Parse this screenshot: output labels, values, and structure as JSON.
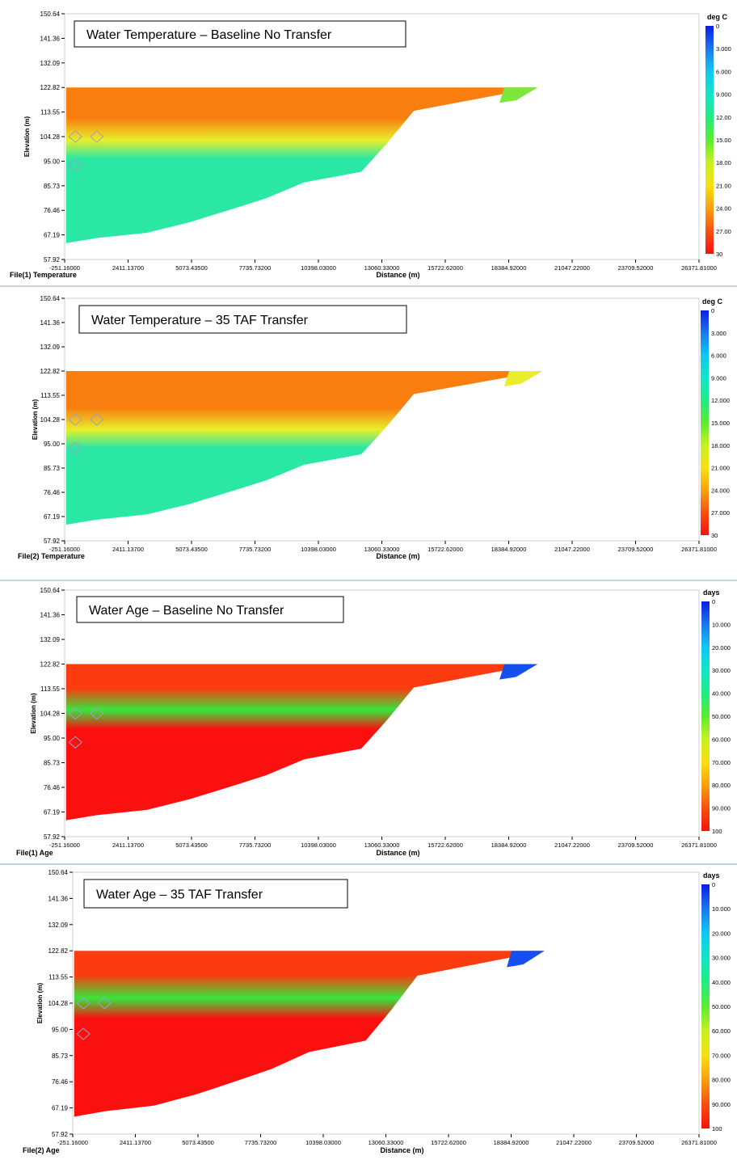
{
  "axis": {
    "y_ticks": [
      "150.64",
      "141.36",
      "132.09",
      "122.82",
      "113.55",
      "104.28",
      "95.00",
      "85.73",
      "76.46",
      "67.19",
      "57.92"
    ],
    "x_ticks": [
      "-251.16000",
      "2411.13700",
      "5073.43500",
      "7735.73200",
      "10398.03000",
      "13060.33000",
      "15722.62000",
      "18384.92000",
      "21047.22000",
      "23709.52000",
      "26371.81000"
    ],
    "ylabel": "Elevation (m)",
    "xlabel": "Distance (m)"
  },
  "chart_data": [
    {
      "type": "heatmap",
      "title": "Water Temperature – Baseline No Transfer",
      "file_label": "File(1) Temperature",
      "xlabel": "Distance (m)",
      "ylabel": "Elevation (m)",
      "xlim": [
        -251.16,
        26371.81
      ],
      "ylim": [
        57.92,
        150.64
      ],
      "colorbar": {
        "unit": "deg C",
        "min": 0,
        "max": 30,
        "labels": [
          "0",
          "3.000",
          "6.000",
          "9.000",
          "12.00",
          "15.00",
          "18.00",
          "21.00",
          "24.00",
          "27.00",
          "30"
        ]
      },
      "colors": {
        "surface": "#f87e10",
        "thermocline": "#e9ee2a",
        "bottom": "#2ae8a4",
        "tip": "#7be63c"
      },
      "water_surface": 122.82,
      "tip_distance": 19600,
      "thermocline_elevation": 103.0,
      "bottom_profile": {
        "x": [
          -251,
          1100,
          3200,
          5000,
          6800,
          8200,
          9800,
          12200,
          13300,
          14400
        ],
        "y": [
          64,
          66,
          68,
          72,
          77,
          81,
          87,
          91,
          102,
          114
        ]
      },
      "markers": [
        [
          200,
          104.28
        ],
        [
          1100,
          104.28
        ],
        [
          200,
          93.4
        ]
      ]
    },
    {
      "type": "heatmap",
      "title": "Water Temperature – 35 TAF Transfer",
      "file_label": "File(2) Temperature",
      "xlabel": "Distance (m)",
      "ylabel": "Elevation (m)",
      "xlim": [
        -251.16,
        26371.81
      ],
      "ylim": [
        57.92,
        150.64
      ],
      "colorbar": {
        "unit": "deg C",
        "min": 0,
        "max": 30,
        "labels": [
          "0",
          "3.000",
          "6.000",
          "9.000",
          "12.000",
          "15.000",
          "18.000",
          "21.000",
          "24.000",
          "27.000",
          "30"
        ]
      },
      "colors": {
        "surface": "#f87e10",
        "thermocline": "#e9ee2a",
        "bottom": "#2ae8a4",
        "tip": "#e9ee2a"
      },
      "water_surface": 122.82,
      "tip_distance": 19800,
      "thermocline_elevation": 100.5,
      "bottom_profile": {
        "x": [
          -251,
          1100,
          3200,
          5000,
          6800,
          8200,
          9800,
          12200,
          13300,
          14400
        ],
        "y": [
          64,
          66,
          68,
          72,
          77,
          81,
          87,
          91,
          102,
          114
        ]
      },
      "markers": [
        [
          200,
          104.28
        ],
        [
          1100,
          104.28
        ],
        [
          200,
          93.4
        ]
      ]
    },
    {
      "type": "heatmap",
      "title": "Water Age – Baseline No Transfer",
      "file_label": "File(1) Age",
      "xlabel": "Distance (m)",
      "ylabel": "Elevation (m)",
      "xlim": [
        -251.16,
        26371.81
      ],
      "ylim": [
        57.92,
        150.64
      ],
      "colorbar": {
        "unit": "days",
        "min": 0,
        "max": 100,
        "labels": [
          "0",
          "10.000",
          "20.000",
          "30.000",
          "40.000",
          "50.000",
          "60.000",
          "70.000",
          "80.000",
          "90.000",
          "100"
        ]
      },
      "colors": {
        "surface": "#fb3b10",
        "thermocline": "#35e63c",
        "bottom": "#fb1010",
        "tip": "#1450f0"
      },
      "water_surface": 122.82,
      "tip_distance": 19600,
      "thermocline_elevation": 105.5,
      "bottom_profile": {
        "x": [
          -251,
          1100,
          3200,
          5000,
          6800,
          8200,
          9800,
          12200,
          13300,
          14400
        ],
        "y": [
          64,
          66,
          68,
          72,
          77,
          81,
          87,
          91,
          102,
          114
        ]
      },
      "markers": [
        [
          200,
          104.28
        ],
        [
          1100,
          104.28
        ],
        [
          200,
          93.4
        ]
      ]
    },
    {
      "type": "heatmap",
      "title": "Water Age – 35 TAF Transfer",
      "file_label": "File(2) Age",
      "xlabel": "Distance (m)",
      "ylabel": "Elevation (m)",
      "xlim": [
        -251.16,
        26371.81
      ],
      "ylim": [
        57.92,
        150.64
      ],
      "colorbar": {
        "unit": "days",
        "min": 0,
        "max": 100,
        "labels": [
          "0",
          "10.000",
          "20.000",
          "30.000",
          "40.000",
          "50.000",
          "60.000",
          "70.000",
          "80.000",
          "90.000",
          "100"
        ]
      },
      "colors": {
        "surface": "#fb3b10",
        "thermocline": "#35e63c",
        "bottom": "#fb1010",
        "tip": "#1450f0"
      },
      "water_surface": 122.82,
      "tip_distance": 19800,
      "thermocline_elevation": 106.0,
      "bottom_profile": {
        "x": [
          -251,
          1100,
          3200,
          5000,
          6800,
          8200,
          9800,
          12200,
          13300,
          14400
        ],
        "y": [
          64,
          66,
          68,
          72,
          77,
          81,
          87,
          91,
          102,
          114
        ]
      },
      "markers": [
        [
          200,
          104.28
        ],
        [
          1100,
          104.28
        ],
        [
          200,
          93.4
        ]
      ]
    }
  ]
}
